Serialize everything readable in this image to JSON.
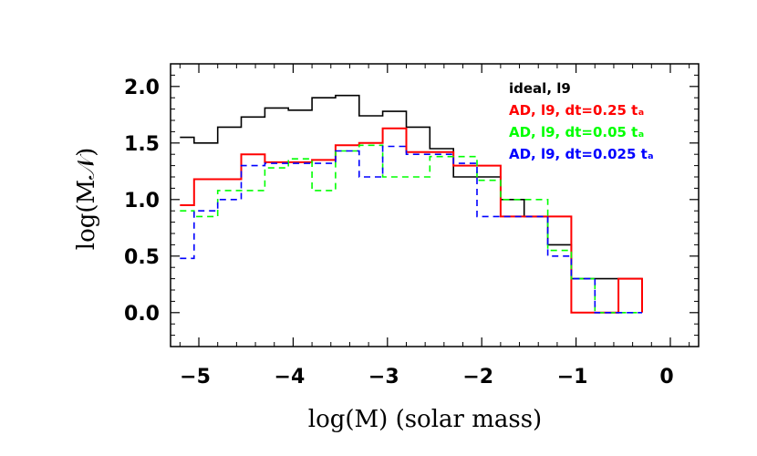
{
  "chart_data": {
    "type": "line",
    "title": "",
    "xlabel": "log(M) (solar mass)",
    "ylabel": "log(M𝒩)",
    "xlim": [
      -5.3,
      0.3
    ],
    "ylim": [
      -0.3,
      2.2
    ],
    "x_ticks": [
      "−5",
      "−4",
      "−3",
      "−2",
      "−1",
      "0"
    ],
    "x_tick_values": [
      -5,
      -4,
      -3,
      -2,
      -1,
      0
    ],
    "y_ticks": [
      "0.0",
      "0.5",
      "1.0",
      "1.5",
      "2.0"
    ],
    "y_tick_values": [
      0.0,
      0.5,
      1.0,
      1.5,
      2.0
    ],
    "legend_position": "top-right",
    "series": [
      {
        "name": "ideal, l9",
        "color": "#000000",
        "dash": "solid",
        "edges": [
          -5.2,
          -5.05,
          -4.8,
          -4.55,
          -4.3,
          -4.05,
          -3.8,
          -3.55,
          -3.3,
          -3.05,
          -2.8,
          -2.55,
          -2.3,
          -2.05,
          -1.8,
          -1.55,
          -1.3,
          -1.05,
          -0.8,
          -0.55,
          -0.3
        ],
        "values": [
          1.55,
          1.5,
          1.64,
          1.73,
          1.81,
          1.79,
          1.9,
          1.92,
          1.74,
          1.78,
          1.64,
          1.45,
          1.2,
          1.2,
          1.0,
          0.85,
          0.6,
          0.3,
          0.3,
          0.3,
          0.3
        ]
      },
      {
        "name": "AD, l9, dt=0.25 tₐ",
        "color": "#ff0000",
        "dash": "solid",
        "edges": [
          -5.2,
          -5.05,
          -4.8,
          -4.55,
          -4.3,
          -4.05,
          -3.8,
          -3.55,
          -3.3,
          -3.05,
          -2.8,
          -2.55,
          -2.3,
          -2.05,
          -1.8,
          -1.55,
          -1.3,
          -1.05,
          -0.8,
          -0.55,
          -0.3
        ],
        "values": [
          0.95,
          1.18,
          1.18,
          1.4,
          1.33,
          1.33,
          1.35,
          1.48,
          1.5,
          1.63,
          1.42,
          1.42,
          1.3,
          1.3,
          0.85,
          0.85,
          0.85,
          0.0,
          0.0,
          0.3,
          0.0
        ]
      },
      {
        "name": "AD, l9, dt=0.05 tₐ",
        "color": "#00ff00",
        "dash": "dashed",
        "edges": [
          -5.2,
          -5.05,
          -4.8,
          -4.55,
          -4.3,
          -4.05,
          -3.8,
          -3.55,
          -3.3,
          -3.05,
          -2.8,
          -2.55,
          -2.3,
          -2.05,
          -1.8,
          -1.55,
          -1.3,
          -1.05,
          -0.8,
          -0.55,
          -0.3
        ],
        "values": [
          0.9,
          0.85,
          1.08,
          1.08,
          1.28,
          1.36,
          1.08,
          1.43,
          1.48,
          1.2,
          1.2,
          1.38,
          1.38,
          1.17,
          1.0,
          1.0,
          0.55,
          0.3,
          0.0,
          0.0,
          0.0
        ]
      },
      {
        "name": "AD, l9, dt=0.025 tₐ",
        "color": "#0000ff",
        "dash": "dashed",
        "edges": [
          -5.2,
          -5.05,
          -4.8,
          -4.55,
          -4.3,
          -4.05,
          -3.8,
          -3.55,
          -3.3,
          -3.05,
          -2.8,
          -2.55,
          -2.3,
          -2.05,
          -1.8,
          -1.55,
          -1.3,
          -1.05,
          -0.8,
          -0.55,
          -0.3
        ],
        "values": [
          0.48,
          0.9,
          1.0,
          1.3,
          1.32,
          1.32,
          1.32,
          1.43,
          1.2,
          1.47,
          1.4,
          1.4,
          1.32,
          0.85,
          0.85,
          0.85,
          0.5,
          0.3,
          0.0,
          0.0,
          0.0
        ]
      }
    ],
    "legend_entries": [
      {
        "label": "ideal, l9",
        "color": "#000000"
      },
      {
        "label": "AD, l9, dt=0.25 tₐ",
        "color": "#ff0000"
      },
      {
        "label": "AD, l9, dt=0.05 tₐ",
        "color": "#00ff00"
      },
      {
        "label": "AD, l9, dt=0.025 tₐ",
        "color": "#0000ff"
      }
    ]
  }
}
